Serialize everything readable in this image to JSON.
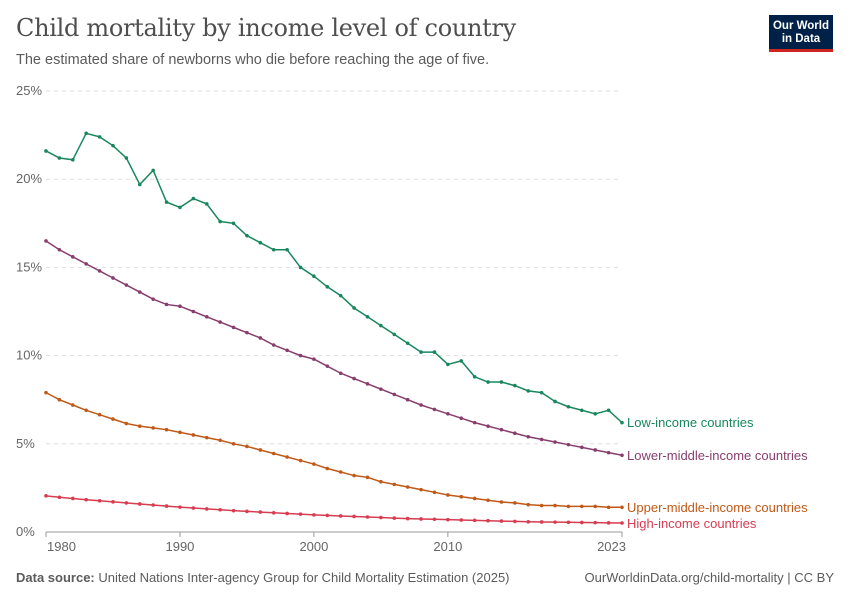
{
  "header": {
    "title": "Child mortality by income level of country",
    "subtitle": "The estimated share of newborns who die before reaching the age of five.",
    "logo_text": "Our World in Data"
  },
  "footer": {
    "source_label": "Data source:",
    "source_text": "United Nations Inter-agency Group for Child Mortality Estimation (2025)",
    "url_license": "OurWorldinData.org/child-mortality | CC BY"
  },
  "chart_data": {
    "type": "line",
    "title": "Child mortality by income level of country",
    "subtitle": "The estimated share of newborns who die before reaching the age of five.",
    "xlabel": "",
    "ylabel": "",
    "xlim": [
      1980,
      2023
    ],
    "ylim": [
      0,
      25
    ],
    "x_ticks": [
      "1980",
      "1990",
      "2000",
      "2010",
      "2023"
    ],
    "y_ticks": [
      "0%",
      "5%",
      "10%",
      "15%",
      "20%",
      "25%"
    ],
    "grid": "horizontal dashed",
    "legend": "right, inline labels at line ends",
    "x": [
      1980,
      1981,
      1982,
      1983,
      1984,
      1985,
      1986,
      1987,
      1988,
      1989,
      1990,
      1991,
      1992,
      1993,
      1994,
      1995,
      1996,
      1997,
      1998,
      1999,
      2000,
      2001,
      2002,
      2003,
      2004,
      2005,
      2006,
      2007,
      2008,
      2009,
      2010,
      2011,
      2012,
      2013,
      2014,
      2015,
      2016,
      2017,
      2018,
      2019,
      2020,
      2021,
      2022,
      2023
    ],
    "series": [
      {
        "name": "Low-income countries",
        "color": "#18875d",
        "values": [
          21.6,
          21.2,
          21.1,
          22.6,
          22.4,
          21.9,
          21.2,
          19.7,
          20.5,
          18.7,
          18.4,
          18.9,
          18.6,
          17.6,
          17.5,
          16.8,
          16.4,
          16.0,
          16.0,
          15.0,
          14.5,
          13.9,
          13.4,
          12.7,
          12.2,
          11.7,
          11.2,
          10.7,
          10.2,
          10.2,
          9.5,
          9.7,
          8.8,
          8.5,
          8.5,
          8.3,
          8.0,
          7.9,
          7.4,
          7.1,
          6.9,
          6.7,
          6.9,
          6.2
        ]
      },
      {
        "name": "Lower-middle-income countries",
        "color": "#883e6d",
        "values": [
          16.5,
          16.0,
          15.6,
          15.2,
          14.8,
          14.4,
          14.0,
          13.6,
          13.2,
          12.9,
          12.8,
          12.5,
          12.2,
          11.9,
          11.6,
          11.3,
          11.0,
          10.6,
          10.3,
          10.0,
          9.8,
          9.4,
          9.0,
          8.7,
          8.4,
          8.1,
          7.8,
          7.5,
          7.2,
          6.95,
          6.7,
          6.45,
          6.2,
          6.0,
          5.8,
          5.6,
          5.4,
          5.25,
          5.1,
          4.95,
          4.8,
          4.65,
          4.5,
          4.35
        ]
      },
      {
        "name": "Upper-middle-income countries",
        "color": "#c05917",
        "values": [
          7.9,
          7.5,
          7.2,
          6.9,
          6.65,
          6.4,
          6.15,
          6.0,
          5.9,
          5.8,
          5.65,
          5.5,
          5.35,
          5.2,
          5.0,
          4.85,
          4.65,
          4.45,
          4.25,
          4.05,
          3.85,
          3.6,
          3.4,
          3.2,
          3.1,
          2.85,
          2.7,
          2.55,
          2.4,
          2.25,
          2.1,
          2.0,
          1.9,
          1.8,
          1.7,
          1.65,
          1.55,
          1.5,
          1.5,
          1.45,
          1.45,
          1.45,
          1.4,
          1.4
        ]
      },
      {
        "name": "High-income countries",
        "color": "#d73c50",
        "values": [
          2.05,
          1.97,
          1.9,
          1.83,
          1.77,
          1.71,
          1.65,
          1.59,
          1.53,
          1.47,
          1.41,
          1.36,
          1.31,
          1.26,
          1.21,
          1.17,
          1.13,
          1.09,
          1.05,
          1.01,
          0.97,
          0.94,
          0.91,
          0.88,
          0.85,
          0.82,
          0.79,
          0.76,
          0.74,
          0.72,
          0.7,
          0.68,
          0.66,
          0.64,
          0.62,
          0.6,
          0.58,
          0.57,
          0.56,
          0.55,
          0.54,
          0.53,
          0.52,
          0.51
        ]
      }
    ]
  }
}
